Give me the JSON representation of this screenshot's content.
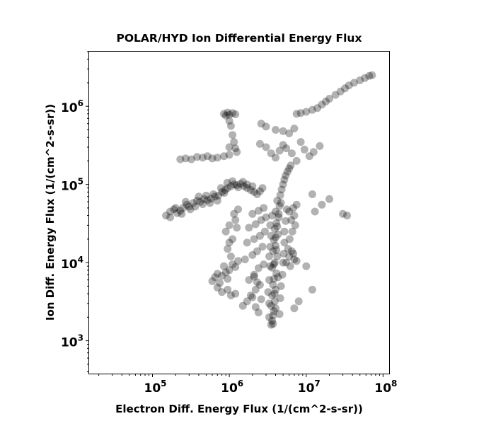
{
  "chart_data": {
    "type": "scatter",
    "title": "POLAR/HYD  Ion Differential Energy Flux",
    "xlabel": "Electron Diff. Energy Flux (1/(cm^2-s-sr))",
    "ylabel": "Ion Diff. Energy Flux (1/(cm^2-s-sr))",
    "xscale": "log",
    "yscale": "log",
    "xlim": [
      15000,
      120000000
    ],
    "ylim": [
      380,
      5000000
    ],
    "x_ticks": [
      {
        "base": "10",
        "exp": "5",
        "value": 100000
      },
      {
        "base": "10",
        "exp": "6",
        "value": 1000000
      },
      {
        "base": "10",
        "exp": "7",
        "value": 10000000
      },
      {
        "base": "10",
        "exp": "8",
        "value": 100000000
      }
    ],
    "y_ticks": [
      {
        "base": "10",
        "exp": "3",
        "value": 1000
      },
      {
        "base": "10",
        "exp": "4",
        "value": 10000
      },
      {
        "base": "10",
        "exp": "5",
        "value": 100000
      },
      {
        "base": "10",
        "exp": "6",
        "value": 1000000
      }
    ],
    "grid": false,
    "marker_color": "#000000",
    "marker_opacity": 0.3,
    "points": [
      [
        150000,
        40000
      ],
      [
        170000,
        45000
      ],
      [
        190000,
        48000
      ],
      [
        210000,
        43000
      ],
      [
        230000,
        46000
      ],
      [
        250000,
        50000
      ],
      [
        280000,
        55000
      ],
      [
        300000,
        52000
      ],
      [
        340000,
        58000
      ],
      [
        380000,
        62000
      ],
      [
        420000,
        60000
      ],
      [
        470000,
        65000
      ],
      [
        520000,
        63000
      ],
      [
        580000,
        66000
      ],
      [
        650000,
        70000
      ],
      [
        720000,
        72000
      ],
      [
        800000,
        80000
      ],
      [
        880000,
        85000
      ],
      [
        950000,
        90000
      ],
      [
        1050000,
        95000
      ],
      [
        1150000,
        100000
      ],
      [
        1250000,
        98000
      ],
      [
        1400000,
        102000
      ],
      [
        1550000,
        95000
      ],
      [
        1700000,
        90000
      ],
      [
        1900000,
        85000
      ],
      [
        2100000,
        80000
      ],
      [
        2300000,
        75000
      ],
      [
        2500000,
        82000
      ],
      [
        2700000,
        90000
      ],
      [
        170000,
        38000
      ],
      [
        200000,
        50000
      ],
      [
        240000,
        42000
      ],
      [
        270000,
        60000
      ],
      [
        310000,
        48000
      ],
      [
        360000,
        52000
      ],
      [
        400000,
        70000
      ],
      [
        450000,
        56000
      ],
      [
        500000,
        72000
      ],
      [
        560000,
        58000
      ],
      [
        620000,
        75000
      ],
      [
        700000,
        62000
      ],
      [
        780000,
        90000
      ],
      [
        860000,
        78000
      ],
      [
        940000,
        105000
      ],
      [
        1100000,
        110000
      ],
      [
        1300000,
        92000
      ],
      [
        1500000,
        108000
      ],
      [
        1700000,
        100000
      ],
      [
        2000000,
        95000
      ],
      [
        230000,
        210000
      ],
      [
        270000,
        215000
      ],
      [
        320000,
        210000
      ],
      [
        380000,
        225000
      ],
      [
        450000,
        220000
      ],
      [
        520000,
        230000
      ],
      [
        600000,
        215000
      ],
      [
        700000,
        220000
      ],
      [
        850000,
        230000
      ],
      [
        1000000,
        240000
      ],
      [
        850000,
        800000
      ],
      [
        900000,
        760000
      ],
      [
        950000,
        830000
      ],
      [
        1000000,
        780000
      ],
      [
        1100000,
        820000
      ],
      [
        1200000,
        790000
      ],
      [
        1000000,
        650000
      ],
      [
        1050000,
        560000
      ],
      [
        1100000,
        430000
      ],
      [
        1150000,
        350000
      ],
      [
        1200000,
        290000
      ],
      [
        1000000,
        300000
      ],
      [
        1250000,
        260000
      ],
      [
        7500000,
        800000
      ],
      [
        8500000,
        820000
      ],
      [
        10000000,
        850000
      ],
      [
        12000000,
        900000
      ],
      [
        14000000,
        950000
      ],
      [
        16000000,
        1050000
      ],
      [
        18000000,
        1150000
      ],
      [
        20000000,
        1250000
      ],
      [
        24000000,
        1400000
      ],
      [
        28000000,
        1550000
      ],
      [
        32000000,
        1700000
      ],
      [
        36000000,
        1850000
      ],
      [
        42000000,
        2000000
      ],
      [
        50000000,
        2150000
      ],
      [
        58000000,
        2300000
      ],
      [
        66000000,
        2450000
      ],
      [
        72000000,
        2500000
      ],
      [
        3500000,
        1600
      ],
      [
        3600000,
        1800
      ],
      [
        3700000,
        2100
      ],
      [
        3800000,
        2400
      ],
      [
        3500000,
        2800
      ],
      [
        3900000,
        3200
      ],
      [
        3600000,
        3800
      ],
      [
        4000000,
        4500
      ],
      [
        3700000,
        5200
      ],
      [
        3800000,
        6200
      ],
      [
        4100000,
        7300
      ],
      [
        3600000,
        8600
      ],
      [
        3900000,
        10000
      ],
      [
        4200000,
        12000
      ],
      [
        3700000,
        14000
      ],
      [
        4000000,
        16500
      ],
      [
        3800000,
        19500
      ],
      [
        4300000,
        23000
      ],
      [
        3900000,
        27000
      ],
      [
        4100000,
        32000
      ],
      [
        4400000,
        38000
      ],
      [
        4000000,
        45000
      ],
      [
        4500000,
        53000
      ],
      [
        4200000,
        62000
      ],
      [
        4600000,
        73000
      ],
      [
        4800000,
        86000
      ],
      [
        5000000,
        100000
      ],
      [
        5200000,
        115000
      ],
      [
        5400000,
        130000
      ],
      [
        5700000,
        145000
      ],
      [
        6000000,
        160000
      ],
      [
        6300000,
        175000
      ],
      [
        3300000,
        2000
      ],
      [
        4500000,
        2200
      ],
      [
        3300000,
        3000
      ],
      [
        4600000,
        3500
      ],
      [
        3200000,
        4200
      ],
      [
        4700000,
        5000
      ],
      [
        3300000,
        6000
      ],
      [
        4900000,
        7000
      ],
      [
        3400000,
        9000
      ],
      [
        5000000,
        10000
      ],
      [
        3300000,
        12000
      ],
      [
        5100000,
        13000
      ],
      [
        3400000,
        16000
      ],
      [
        5200000,
        18000
      ],
      [
        3500000,
        22000
      ],
      [
        5200000,
        25000
      ],
      [
        3400000,
        30000
      ],
      [
        5400000,
        34000
      ],
      [
        3600000,
        40000
      ],
      [
        5600000,
        48000
      ],
      [
        3700000,
        1650
      ],
      [
        4000000,
        2600
      ],
      [
        3900000,
        4000
      ],
      [
        4300000,
        6500
      ],
      [
        3800000,
        9500
      ],
      [
        4100000,
        14500
      ],
      [
        4000000,
        21000
      ],
      [
        4200000,
        29000
      ],
      [
        4400000,
        42000
      ],
      [
        4700000,
        58000
      ],
      [
        1500000,
        2800
      ],
      [
        1700000,
        3200
      ],
      [
        1900000,
        3800
      ],
      [
        2200000,
        4500
      ],
      [
        2500000,
        5200
      ],
      [
        1800000,
        6000
      ],
      [
        2100000,
        7000
      ],
      [
        2400000,
        8500
      ],
      [
        2800000,
        9500
      ],
      [
        1600000,
        11000
      ],
      [
        2000000,
        12500
      ],
      [
        2300000,
        14000
      ],
      [
        2700000,
        16000
      ],
      [
        1700000,
        18000
      ],
      [
        2100000,
        20000
      ],
      [
        2500000,
        22000
      ],
      [
        2900000,
        25000
      ],
      [
        1800000,
        28000
      ],
      [
        2200000,
        31000
      ],
      [
        2600000,
        35000
      ],
      [
        3000000,
        38000
      ],
      [
        2000000,
        42000
      ],
      [
        2400000,
        46000
      ],
      [
        2800000,
        50000
      ],
      [
        5500000,
        10000
      ],
      [
        6000000,
        12000
      ],
      [
        6500000,
        14000
      ],
      [
        7000000,
        11000
      ],
      [
        6200000,
        9000
      ],
      [
        5800000,
        15000
      ],
      [
        6800000,
        13000
      ],
      [
        7500000,
        10500
      ],
      [
        6100000,
        20000
      ],
      [
        6600000,
        25000
      ],
      [
        7200000,
        30000
      ],
      [
        6400000,
        35000
      ],
      [
        7000000,
        40000
      ],
      [
        6000000,
        45000
      ],
      [
        6800000,
        50000
      ],
      [
        7500000,
        55000
      ],
      [
        900000,
        25000
      ],
      [
        1000000,
        30000
      ],
      [
        1100000,
        20000
      ],
      [
        950000,
        15000
      ],
      [
        1050000,
        12000
      ],
      [
        1200000,
        35000
      ],
      [
        1150000,
        42000
      ],
      [
        1300000,
        48000
      ],
      [
        1250000,
        28000
      ],
      [
        1000000,
        18000
      ],
      [
        600000,
        5800
      ],
      [
        650000,
        6500
      ],
      [
        700000,
        7200
      ],
      [
        800000,
        6800
      ],
      [
        900000,
        7500
      ],
      [
        1000000,
        8000
      ],
      [
        750000,
        5500
      ],
      [
        850000,
        9000
      ],
      [
        950000,
        6200
      ],
      [
        1100000,
        9500
      ],
      [
        1200000,
        8800
      ],
      [
        1300000,
        10500
      ],
      [
        700000,
        4800
      ],
      [
        800000,
        4200
      ],
      [
        950000,
        4500
      ],
      [
        1050000,
        3800
      ],
      [
        1200000,
        4000
      ],
      [
        3000000,
        300000
      ],
      [
        3500000,
        250000
      ],
      [
        4000000,
        220000
      ],
      [
        4500000,
        270000
      ],
      [
        5000000,
        320000
      ],
      [
        5500000,
        290000
      ],
      [
        2500000,
        330000
      ],
      [
        6500000,
        250000
      ],
      [
        7500000,
        200000
      ],
      [
        8500000,
        350000
      ],
      [
        9500000,
        280000
      ],
      [
        11000000,
        230000
      ],
      [
        12500000,
        260000
      ],
      [
        15000000,
        310000
      ],
      [
        2600000,
        600000
      ],
      [
        3000000,
        550000
      ],
      [
        4000000,
        500000
      ],
      [
        5000000,
        480000
      ],
      [
        6000000,
        450000
      ],
      [
        7000000,
        520000
      ],
      [
        13000000,
        45000
      ],
      [
        16000000,
        55000
      ],
      [
        20000000,
        65000
      ],
      [
        30000000,
        42000
      ],
      [
        34000000,
        40000
      ],
      [
        12000000,
        75000
      ],
      [
        10000000,
        9000
      ],
      [
        12000000,
        4500
      ],
      [
        8000000,
        3200
      ],
      [
        7000000,
        2600
      ],
      [
        2200000,
        2700
      ],
      [
        2400000,
        2300
      ],
      [
        2600000,
        3400
      ],
      [
        2000000,
        3600
      ],
      [
        2300000,
        5600
      ],
      [
        2100000,
        6600
      ]
    ]
  }
}
